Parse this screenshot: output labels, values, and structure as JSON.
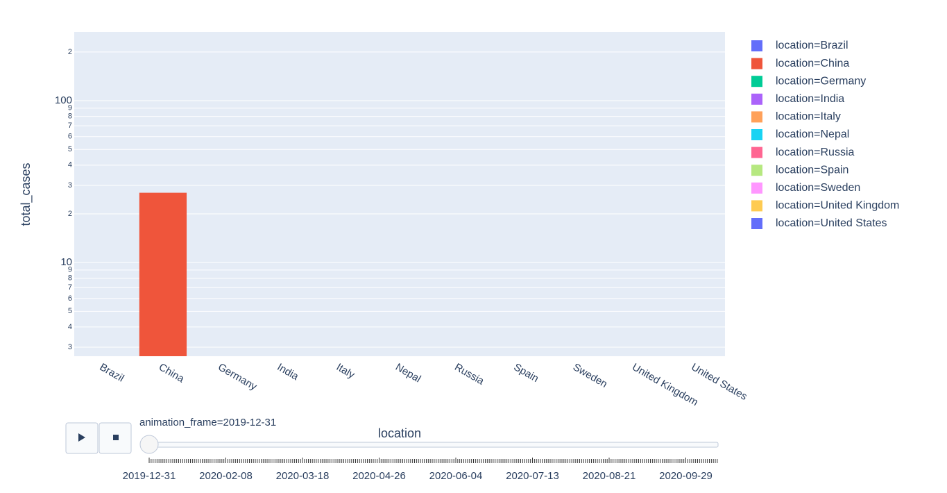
{
  "chart_data": {
    "type": "bar",
    "y_label": "total_cases",
    "x_label": "location",
    "log_y": true,
    "grid": true,
    "legend_position": "right",
    "categories": [
      "Brazil",
      "China",
      "Germany",
      "India",
      "Italy",
      "Nepal",
      "Russia",
      "Spain",
      "Sweden",
      "United Kingdom",
      "United States"
    ],
    "series": [
      {
        "name": "location=Brazil",
        "color": "#636efa",
        "values": [
          null,
          null,
          null,
          null,
          null,
          null,
          null,
          null,
          null,
          null,
          null
        ]
      },
      {
        "name": "location=China",
        "color": "#ef553b",
        "values": [
          null,
          27,
          null,
          null,
          null,
          null,
          null,
          null,
          null,
          null,
          null
        ]
      },
      {
        "name": "location=Germany",
        "color": "#00cc96",
        "values": [
          null,
          null,
          null,
          null,
          null,
          null,
          null,
          null,
          null,
          null,
          null
        ]
      },
      {
        "name": "location=India",
        "color": "#ab63fa",
        "values": [
          null,
          null,
          null,
          null,
          null,
          null,
          null,
          null,
          null,
          null,
          null
        ]
      },
      {
        "name": "location=Italy",
        "color": "#ffa15a",
        "values": [
          null,
          null,
          null,
          null,
          null,
          null,
          null,
          null,
          null,
          null,
          null
        ]
      },
      {
        "name": "location=Nepal",
        "color": "#19d3f3",
        "values": [
          null,
          null,
          null,
          null,
          null,
          null,
          null,
          null,
          null,
          null,
          null
        ]
      },
      {
        "name": "location=Russia",
        "color": "#ff6692",
        "values": [
          null,
          null,
          null,
          null,
          null,
          null,
          null,
          null,
          null,
          null,
          null
        ]
      },
      {
        "name": "location=Spain",
        "color": "#b6e880",
        "values": [
          null,
          null,
          null,
          null,
          null,
          null,
          null,
          null,
          null,
          null,
          null
        ]
      },
      {
        "name": "location=Sweden",
        "color": "#ff97ff",
        "values": [
          null,
          null,
          null,
          null,
          null,
          null,
          null,
          null,
          null,
          null,
          null
        ]
      },
      {
        "name": "location=United Kingdom",
        "color": "#fecb52",
        "values": [
          null,
          null,
          null,
          null,
          null,
          null,
          null,
          null,
          null,
          null,
          null
        ]
      },
      {
        "name": "location=United States",
        "color": "#636efa",
        "values": [
          null,
          null,
          null,
          null,
          null,
          null,
          null,
          null,
          null,
          null,
          null
        ]
      }
    ],
    "ylim": [
      2.64,
      266
    ],
    "yticks": [
      3,
      4,
      5,
      6,
      7,
      8,
      9,
      10,
      {
        "value": 20,
        "label": "2"
      },
      {
        "value": 30,
        "label": "3"
      },
      {
        "value": 40,
        "label": "4"
      },
      {
        "value": 50,
        "label": "5"
      },
      {
        "value": 60,
        "label": "6"
      },
      {
        "value": 70,
        "label": "7"
      },
      {
        "value": 80,
        "label": "8"
      },
      {
        "value": 90,
        "label": "9"
      },
      100,
      {
        "value": 200,
        "label": "2"
      }
    ],
    "slider": {
      "current_label": "animation_frame=2019-12-31",
      "tick_labels": [
        "2019-12-31",
        "2020-02-08",
        "2020-03-18",
        "2020-04-26",
        "2020-06-04",
        "2020-07-13",
        "2020-08-21",
        "2020-09-29"
      ]
    }
  }
}
